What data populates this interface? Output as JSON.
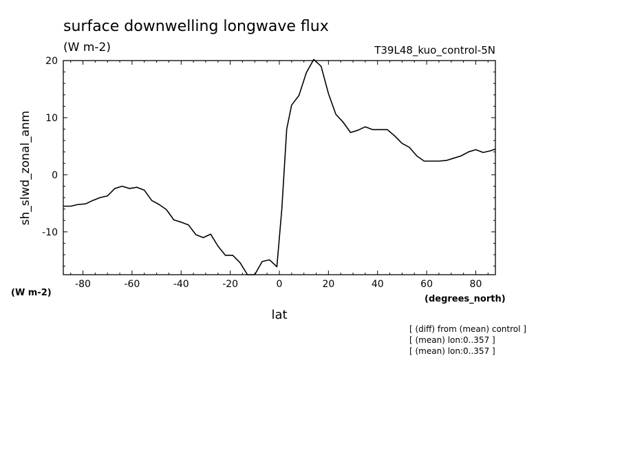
{
  "chart_data": {
    "type": "line",
    "title": "surface downwelling longwave flux",
    "subtitle": "(W m-2)",
    "run_label": "T39L48_kuo_control-5N",
    "ylabel": "sh_slwd_zonal_anm",
    "yunits": "(W m-2)",
    "xlabel": "lat",
    "xunits": "(degrees_north)",
    "xlim": [
      -88,
      88
    ],
    "ylim": [
      -17.5,
      20
    ],
    "xticks": [
      -80,
      -60,
      -40,
      -20,
      0,
      20,
      40,
      60,
      80
    ],
    "yticks": [
      -10,
      0,
      10,
      20
    ],
    "notes": [
      "[ (diff) from (mean) control ]",
      "[ (mean) lon:0..357 ]",
      "[ (mean) lon:0..357 ]"
    ],
    "series": [
      {
        "x": [
          -88,
          -85,
          -82,
          -79,
          -76,
          -73,
          -70,
          -67,
          -64,
          -61,
          -58,
          -55,
          -52,
          -49,
          -46,
          -43,
          -40,
          -37,
          -34,
          -31,
          -28,
          -25,
          -22,
          -19,
          -16,
          -13,
          -10,
          -7,
          -4,
          -1,
          1,
          3,
          5,
          8,
          11,
          14,
          17,
          20,
          23,
          26,
          29,
          32,
          35,
          38,
          41,
          44,
          47,
          50,
          53,
          56,
          59,
          62,
          65,
          68,
          71,
          74,
          77,
          80,
          83,
          86,
          88
        ],
        "y": [
          -5.5,
          -5.5,
          -5.2,
          -5.1,
          -4.5,
          -4.0,
          -3.7,
          -2.4,
          -2.0,
          -2.4,
          -2.2,
          -2.7,
          -4.5,
          -5.2,
          -6.1,
          -7.9,
          -8.3,
          -8.8,
          -10.5,
          -11.0,
          -10.4,
          -12.5,
          -14.1,
          -14.1,
          -15.4,
          -17.5,
          -17.5,
          -15.2,
          -14.9,
          -16.1,
          -6.0,
          8.0,
          12.2,
          13.9,
          17.9,
          20.2,
          19.0,
          14.2,
          10.6,
          9.2,
          7.4,
          7.8,
          8.4,
          7.9,
          7.9,
          7.9,
          6.8,
          5.5,
          4.8,
          3.3,
          2.4,
          2.4,
          2.4,
          2.5,
          2.9,
          3.3,
          4.0,
          4.4,
          3.9,
          4.2,
          4.5
        ]
      }
    ]
  }
}
